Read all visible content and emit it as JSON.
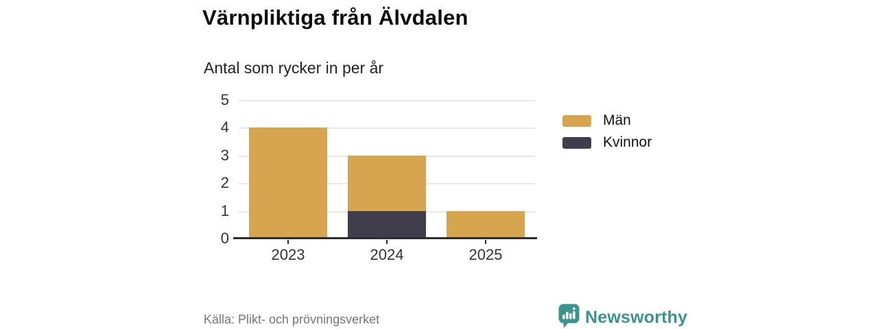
{
  "header": {
    "title": "Värnpliktiga från Älvdalen",
    "subtitle": "Antal som rycker in per år"
  },
  "chart_data": {
    "type": "bar",
    "stacked": true,
    "title": "Värnpliktiga från Älvdalen",
    "subtitle": "Antal som rycker in per år",
    "categories": [
      "2023",
      "2024",
      "2025"
    ],
    "series": [
      {
        "name": "Män",
        "color": "#d7a54f",
        "values": [
          4,
          2,
          1
        ]
      },
      {
        "name": "Kvinnor",
        "color": "#403d4d",
        "values": [
          0,
          1,
          0
        ]
      }
    ],
    "stack_bottom_to_top": [
      "Kvinnor",
      "Män"
    ],
    "totals": [
      4,
      3,
      1
    ],
    "xlabel": "",
    "ylabel": "",
    "ylim": [
      0,
      5
    ],
    "yticks": [
      0,
      1,
      2,
      3,
      4,
      5
    ],
    "grid": "horizontal",
    "legend_position": "right"
  },
  "footer": {
    "source": "Källa: Plikt- och prövningsverket",
    "brand": "Newsworthy"
  },
  "colors": {
    "men": "#d7a54f",
    "women": "#403d4d",
    "brand_teal": "#38948c",
    "grid": "#e8e8ea",
    "axis": "#2c2c2c",
    "tick_text": "#333333",
    "muted_text": "#777474"
  }
}
